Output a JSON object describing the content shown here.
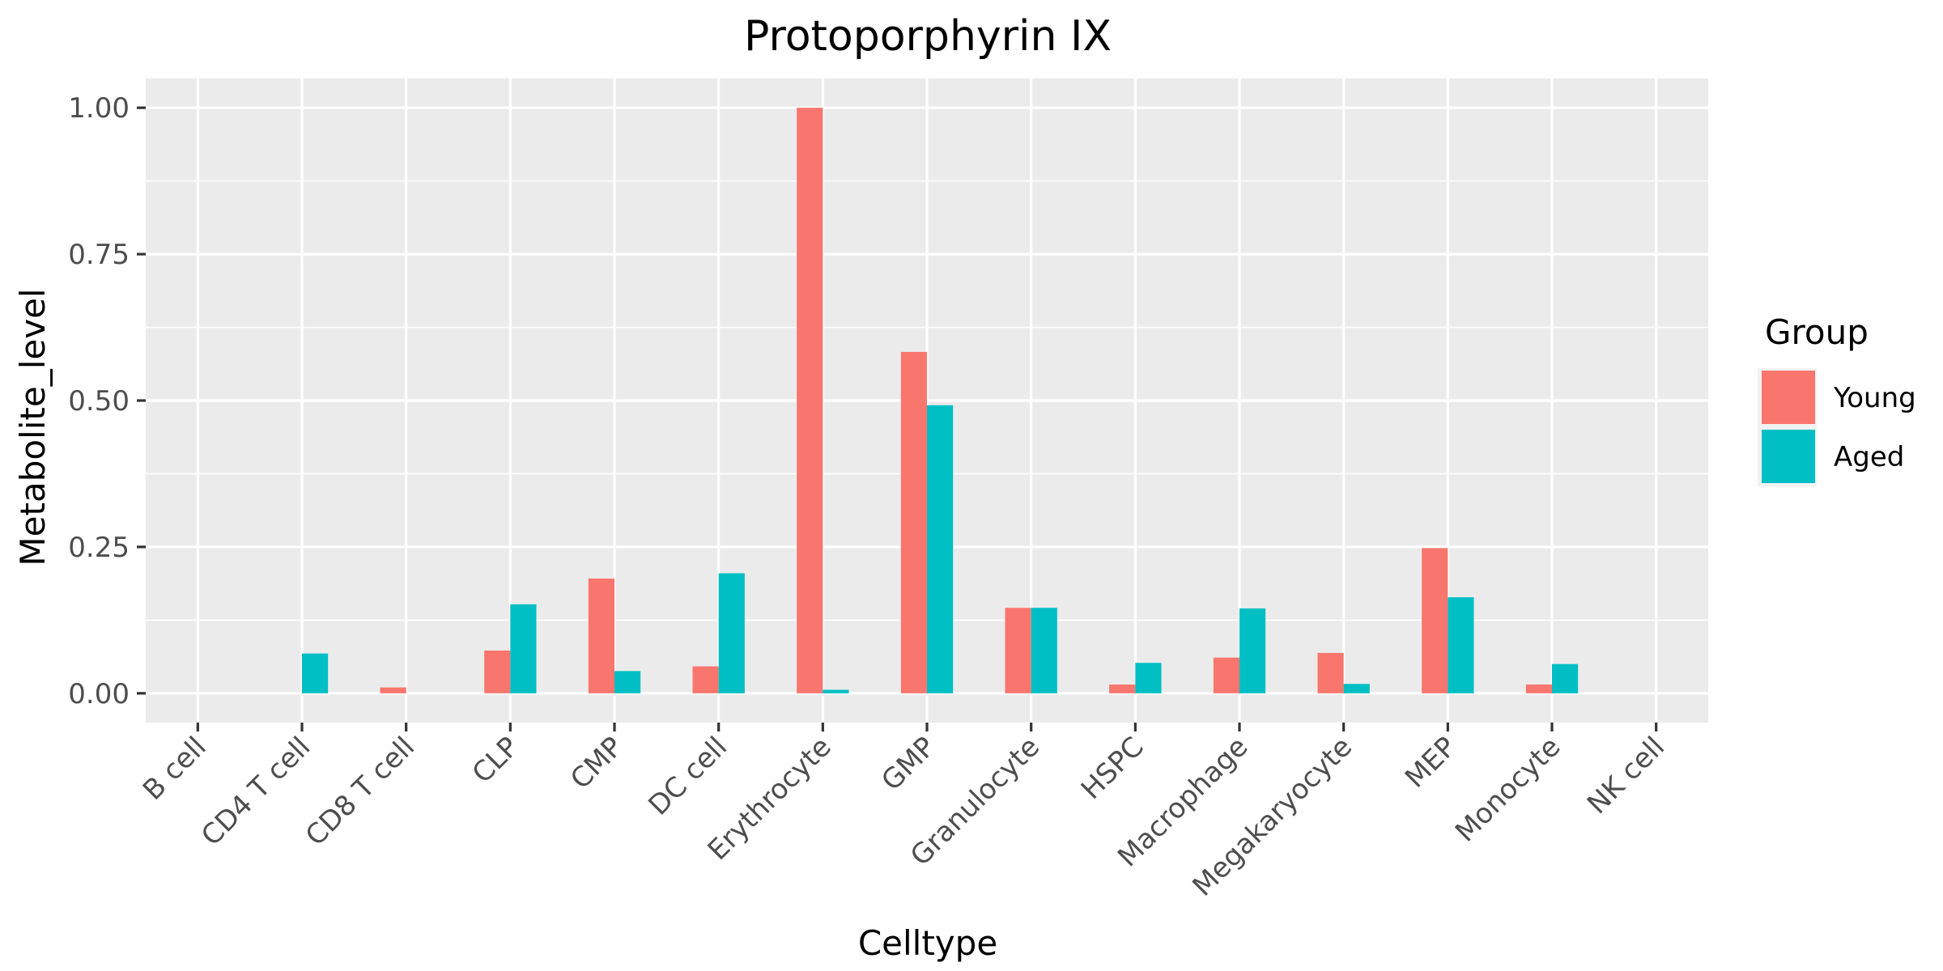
{
  "chart_data": {
    "type": "bar",
    "title": "Protoporphyrin IX",
    "xlabel": "Celltype",
    "ylabel": "Metabolite_level",
    "categories": [
      "B cell",
      "CD4 T cell",
      "CD8 T cell",
      "CLP",
      "CMP",
      "DC cell",
      "Erythrocyte",
      "GMP",
      "Granulocyte",
      "HSPC",
      "Macrophage",
      "Megakaryocyte",
      "MEP",
      "Monocyte",
      "NK cell"
    ],
    "series": [
      {
        "name": "Young",
        "color": "#F8766D",
        "values": [
          0,
          0,
          0.01,
          0.073,
          0.196,
          0.046,
          1.0,
          0.583,
          0.146,
          0.015,
          0.061,
          0.069,
          0.248,
          0.015,
          0
        ]
      },
      {
        "name": "Aged",
        "color": "#00BFC4",
        "values": [
          0,
          0.068,
          0,
          0.152,
          0.038,
          0.205,
          0.006,
          0.492,
          0.146,
          0.052,
          0.145,
          0.016,
          0.164,
          0.05,
          0
        ]
      }
    ],
    "ylim": [
      -0.05,
      1.05
    ],
    "yticks": [
      0,
      0.25,
      0.5,
      0.75,
      1.0
    ],
    "ytick_labels": [
      "0.00",
      "0.25",
      "0.50",
      "0.75",
      "1.00"
    ],
    "legend": {
      "title": "Group",
      "position": "right"
    },
    "grid": true,
    "panel_background": "#EBEBEB",
    "grid_color": "#FFFFFF"
  }
}
